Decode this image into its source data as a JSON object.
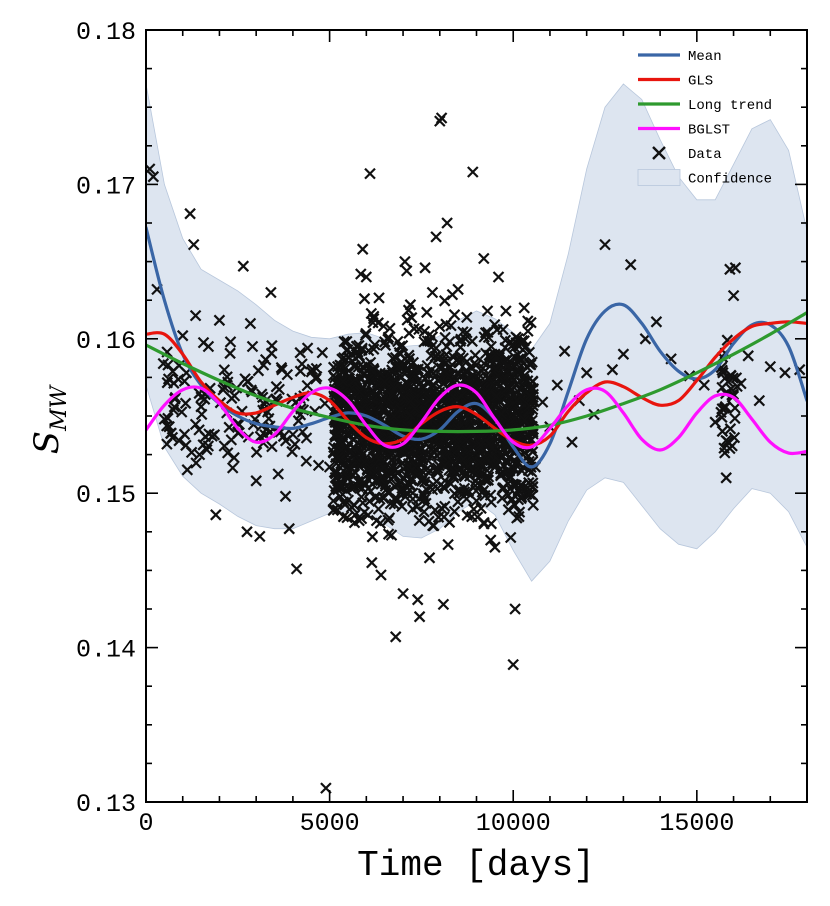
{
  "chart_data": {
    "type": "scatter",
    "xlabel": "Time [days]",
    "ylabel_main": "S",
    "ylabel_sub": "MW",
    "xlim": [
      0,
      18000
    ],
    "ylim": [
      0.13,
      0.18
    ],
    "xticks": [
      0,
      5000,
      10000,
      15000
    ],
    "xtick_labels": [
      "0",
      "5000",
      "10000",
      "15000"
    ],
    "yticks": [
      0.13,
      0.14,
      0.15,
      0.16,
      0.17,
      0.18
    ],
    "ytick_labels": [
      "0.13",
      "0.14",
      "0.15",
      "0.16",
      "0.17",
      "0.18"
    ],
    "legend_position": "top-right",
    "colors": {
      "mean": "#3a66a6",
      "gls": "#e8150e",
      "long_trend": "#2e9a2e",
      "bglst": "#ff10ff",
      "data": "#111111",
      "confidence": "#dde5f0"
    },
    "legend": [
      {
        "key": "mean",
        "label": "Mean",
        "kind": "line"
      },
      {
        "key": "gls",
        "label": "GLS",
        "kind": "line"
      },
      {
        "key": "long_trend",
        "label": "Long trend",
        "kind": "line"
      },
      {
        "key": "bglst",
        "label": "BGLST",
        "kind": "line"
      },
      {
        "key": "data",
        "label": "Data",
        "kind": "marker"
      },
      {
        "key": "confidence",
        "label": "Confidence",
        "kind": "patch"
      }
    ],
    "series": [
      {
        "name": "Mean",
        "key": "mean",
        "x": [
          0,
          500,
          1000,
          1500,
          2000,
          2500,
          3000,
          3500,
          4000,
          4500,
          5000,
          5500,
          6000,
          6500,
          7000,
          7500,
          8000,
          8500,
          9000,
          9500,
          10000,
          10500,
          11000,
          11500,
          12000,
          12500,
          13000,
          13500,
          14000,
          14500,
          15000,
          15500,
          16000,
          16500,
          17000,
          17500,
          18000
        ],
        "y": [
          0.1672,
          0.1625,
          0.159,
          0.157,
          0.1558,
          0.155,
          0.1545,
          0.1543,
          0.1542,
          0.1545,
          0.1549,
          0.1552,
          0.155,
          0.1544,
          0.1537,
          0.1535,
          0.1541,
          0.1553,
          0.1558,
          0.1548,
          0.153,
          0.1517,
          0.1532,
          0.1566,
          0.16,
          0.1618,
          0.1622,
          0.161,
          0.1592,
          0.1579,
          0.1574,
          0.158,
          0.1597,
          0.1609,
          0.1609,
          0.1595,
          0.156
        ]
      },
      {
        "name": "GLS",
        "key": "gls",
        "x": [
          0,
          500,
          1000,
          1500,
          2000,
          2500,
          3000,
          3500,
          4000,
          4500,
          5000,
          5500,
          6000,
          6500,
          7000,
          7500,
          8000,
          8500,
          9000,
          9500,
          10000,
          10500,
          11000,
          11500,
          12000,
          12500,
          13000,
          13500,
          14000,
          14500,
          15000,
          15500,
          16000,
          16500,
          17000,
          17500,
          18000
        ],
        "y": [
          0.1603,
          0.1603,
          0.159,
          0.1572,
          0.156,
          0.1552,
          0.1552,
          0.1557,
          0.1562,
          0.1565,
          0.156,
          0.1547,
          0.1536,
          0.1532,
          0.1535,
          0.1545,
          0.1553,
          0.1556,
          0.1551,
          0.1542,
          0.1534,
          0.1531,
          0.1537,
          0.1553,
          0.1565,
          0.1572,
          0.1569,
          0.1562,
          0.1557,
          0.156,
          0.1573,
          0.1588,
          0.16,
          0.1608,
          0.161,
          0.1611,
          0.161
        ]
      },
      {
        "name": "Long trend",
        "key": "long_trend",
        "x": [
          0,
          1000,
          2000,
          3000,
          4000,
          5000,
          6000,
          7000,
          8000,
          9000,
          10000,
          11000,
          12000,
          13000,
          14000,
          15000,
          16000,
          17000,
          18000
        ],
        "y": [
          0.1596,
          0.1584,
          0.1573,
          0.1563,
          0.1555,
          0.1549,
          0.1544,
          0.1541,
          0.154,
          0.154,
          0.1541,
          0.1544,
          0.155,
          0.1558,
          0.1567,
          0.1578,
          0.159,
          0.1603,
          0.1617
        ]
      },
      {
        "name": "BGLST",
        "key": "bglst",
        "x": [
          0,
          500,
          1000,
          1500,
          2000,
          2500,
          3000,
          3500,
          4000,
          4500,
          5000,
          5500,
          6000,
          6500,
          7000,
          7500,
          8000,
          8500,
          9000,
          9500,
          10000,
          10500,
          11000,
          11500,
          12000,
          12500,
          13000,
          13500,
          14000,
          14500,
          15000,
          15500,
          16000,
          16500,
          17000,
          17500,
          18000
        ],
        "y": [
          0.1541,
          0.1557,
          0.1567,
          0.1568,
          0.1558,
          0.1542,
          0.1533,
          0.1538,
          0.1553,
          0.1565,
          0.1568,
          0.156,
          0.1544,
          0.1531,
          0.1532,
          0.1546,
          0.1562,
          0.157,
          0.1565,
          0.1548,
          0.1533,
          0.153,
          0.1542,
          0.1557,
          0.1567,
          0.1566,
          0.1552,
          0.1535,
          0.1528,
          0.1536,
          0.1552,
          0.1563,
          0.1562,
          0.1548,
          0.1533,
          0.1526,
          0.1527
        ]
      }
    ],
    "confidence_band": {
      "x": [
        0,
        500,
        1000,
        1500,
        2000,
        2500,
        3000,
        3500,
        4000,
        4500,
        5000,
        5500,
        6000,
        6500,
        7000,
        7500,
        8000,
        8500,
        9000,
        9500,
        10000,
        10500,
        11000,
        11500,
        12000,
        12500,
        13000,
        13500,
        14000,
        14500,
        15000,
        15500,
        16000,
        16500,
        17000,
        17500,
        18000
      ],
      "upper": [
        0.1765,
        0.17,
        0.1665,
        0.1645,
        0.1638,
        0.1631,
        0.1622,
        0.1612,
        0.1605,
        0.1601,
        0.16,
        0.1603,
        0.1604,
        0.16,
        0.1595,
        0.1596,
        0.1602,
        0.1612,
        0.1618,
        0.1613,
        0.1604,
        0.1593,
        0.161,
        0.1655,
        0.171,
        0.175,
        0.1765,
        0.1755,
        0.1729,
        0.1705,
        0.169,
        0.169,
        0.1713,
        0.1736,
        0.1742,
        0.1722,
        0.167
      ],
      "lower": [
        0.157,
        0.153,
        0.1511,
        0.15,
        0.1493,
        0.1485,
        0.1479,
        0.1477,
        0.1477,
        0.1482,
        0.1487,
        0.1488,
        0.1485,
        0.148,
        0.1472,
        0.1471,
        0.1477,
        0.1488,
        0.1495,
        0.1486,
        0.1463,
        0.1443,
        0.1456,
        0.1482,
        0.1502,
        0.151,
        0.1507,
        0.1492,
        0.1477,
        0.1467,
        0.1464,
        0.1475,
        0.149,
        0.1503,
        0.15,
        0.1488,
        0.1465
      ]
    },
    "data_points": [
      [
        100,
        0.171
      ],
      [
        200,
        0.1705
      ],
      [
        300,
        0.1632
      ],
      [
        500,
        0.1548
      ],
      [
        600,
        0.1583
      ],
      [
        800,
        0.1562
      ],
      [
        900,
        0.1534
      ],
      [
        1000,
        0.1602
      ],
      [
        1100,
        0.1578
      ],
      [
        1200,
        0.1681
      ],
      [
        1300,
        0.1661
      ],
      [
        1350,
        0.1615
      ],
      [
        1500,
        0.1556
      ],
      [
        1700,
        0.1595
      ],
      [
        1800,
        0.1537
      ],
      [
        1900,
        0.1486
      ],
      [
        2000,
        0.1612
      ],
      [
        2100,
        0.1567
      ],
      [
        2200,
        0.1552
      ],
      [
        2300,
        0.1598
      ],
      [
        2400,
        0.1523
      ],
      [
        2500,
        0.1545
      ],
      [
        2650,
        0.1647
      ],
      [
        2700,
        0.1574
      ],
      [
        2750,
        0.1475
      ],
      [
        2900,
        0.1595
      ],
      [
        3000,
        0.1508
      ],
      [
        3100,
        0.1472
      ],
      [
        3200,
        0.1583
      ],
      [
        3300,
        0.1542
      ],
      [
        3400,
        0.163
      ],
      [
        3550,
        0.1569
      ],
      [
        3700,
        0.158
      ],
      [
        3800,
        0.1498
      ],
      [
        3900,
        0.1477
      ],
      [
        4000,
        0.1538
      ],
      [
        4100,
        0.1451
      ],
      [
        4200,
        0.1591
      ],
      [
        4300,
        0.1563
      ],
      [
        4400,
        0.1594
      ],
      [
        4600,
        0.1553
      ],
      [
        4700,
        0.1518
      ],
      [
        4800,
        0.1591
      ],
      [
        4900,
        0.1309
      ],
      [
        5000,
        0.1517
      ],
      [
        5100,
        0.1495
      ],
      [
        5200,
        0.1556
      ],
      [
        5350,
        0.1578
      ],
      [
        5500,
        0.151
      ],
      [
        5600,
        0.1491
      ],
      [
        5700,
        0.1574
      ],
      [
        5850,
        0.1642
      ],
      [
        5900,
        0.1658
      ],
      [
        5950,
        0.1626
      ],
      [
        6000,
        0.164
      ],
      [
        6050,
        0.1534
      ],
      [
        6100,
        0.1707
      ],
      [
        6150,
        0.1455
      ],
      [
        6200,
        0.1613
      ],
      [
        6300,
        0.1508
      ],
      [
        6400,
        0.1447
      ],
      [
        6500,
        0.1572
      ],
      [
        6600,
        0.1601
      ],
      [
        6700,
        0.1537
      ],
      [
        6800,
        0.1407
      ],
      [
        6900,
        0.1591
      ],
      [
        7000,
        0.1435
      ],
      [
        7050,
        0.165
      ],
      [
        7100,
        0.1644
      ],
      [
        7200,
        0.1622
      ],
      [
        7300,
        0.158
      ],
      [
        7400,
        0.1431
      ],
      [
        7450,
        0.142
      ],
      [
        7600,
        0.1646
      ],
      [
        7700,
        0.156
      ],
      [
        7800,
        0.163
      ],
      [
        7900,
        0.1666
      ],
      [
        8000,
        0.1741
      ],
      [
        8050,
        0.1743
      ],
      [
        8100,
        0.1428
      ],
      [
        8200,
        0.1675
      ],
      [
        8300,
        0.1506
      ],
      [
        8400,
        0.1535
      ],
      [
        8500,
        0.1632
      ],
      [
        8600,
        0.1563
      ],
      [
        8700,
        0.16
      ],
      [
        8800,
        0.1572
      ],
      [
        8900,
        0.1708
      ],
      [
        9000,
        0.1495
      ],
      [
        9100,
        0.152
      ],
      [
        9200,
        0.1652
      ],
      [
        9300,
        0.1618
      ],
      [
        9400,
        0.1595
      ],
      [
        9500,
        0.1465
      ],
      [
        9600,
        0.164
      ],
      [
        9700,
        0.1535
      ],
      [
        9800,
        0.1618
      ],
      [
        9900,
        0.1511
      ],
      [
        10000,
        0.1389
      ],
      [
        10050,
        0.1425
      ],
      [
        10100,
        0.156
      ],
      [
        10200,
        0.1597
      ],
      [
        10300,
        0.162
      ],
      [
        10400,
        0.1605
      ],
      [
        10500,
        0.1529
      ],
      [
        10600,
        0.1517
      ],
      [
        10800,
        0.1559
      ],
      [
        11000,
        0.1543
      ],
      [
        11200,
        0.157
      ],
      [
        11400,
        0.1592
      ],
      [
        11600,
        0.1533
      ],
      [
        11800,
        0.156
      ],
      [
        12000,
        0.1578
      ],
      [
        12200,
        0.1551
      ],
      [
        12500,
        0.1661
      ],
      [
        12700,
        0.158
      ],
      [
        13000,
        0.159
      ],
      [
        13200,
        0.1648
      ],
      [
        13600,
        0.16
      ],
      [
        13900,
        0.1611
      ],
      [
        14300,
        0.1587
      ],
      [
        14800,
        0.1576
      ],
      [
        15200,
        0.157
      ],
      [
        15500,
        0.1546
      ],
      [
        15700,
        0.1588
      ],
      [
        15800,
        0.151
      ],
      [
        15900,
        0.1645
      ],
      [
        16000,
        0.1628
      ],
      [
        16050,
        0.1646
      ],
      [
        16200,
        0.1571
      ],
      [
        16400,
        0.1589
      ],
      [
        16700,
        0.156
      ],
      [
        17000,
        0.1582
      ],
      [
        17400,
        0.1578
      ],
      [
        17800,
        0.158
      ]
    ],
    "dense_clusters": [
      {
        "x_range": [
          5100,
          10550
        ],
        "y_center": 0.1545,
        "y_spread": 0.0048,
        "count": 1800,
        "seed": 11
      },
      {
        "x_range": [
          400,
          4900
        ],
        "y_center": 0.1556,
        "y_spread": 0.0038,
        "count": 120,
        "seed": 23
      },
      {
        "x_range": [
          15650,
          16100
        ],
        "y_center": 0.156,
        "y_spread": 0.003,
        "count": 35,
        "seed": 37
      }
    ]
  }
}
